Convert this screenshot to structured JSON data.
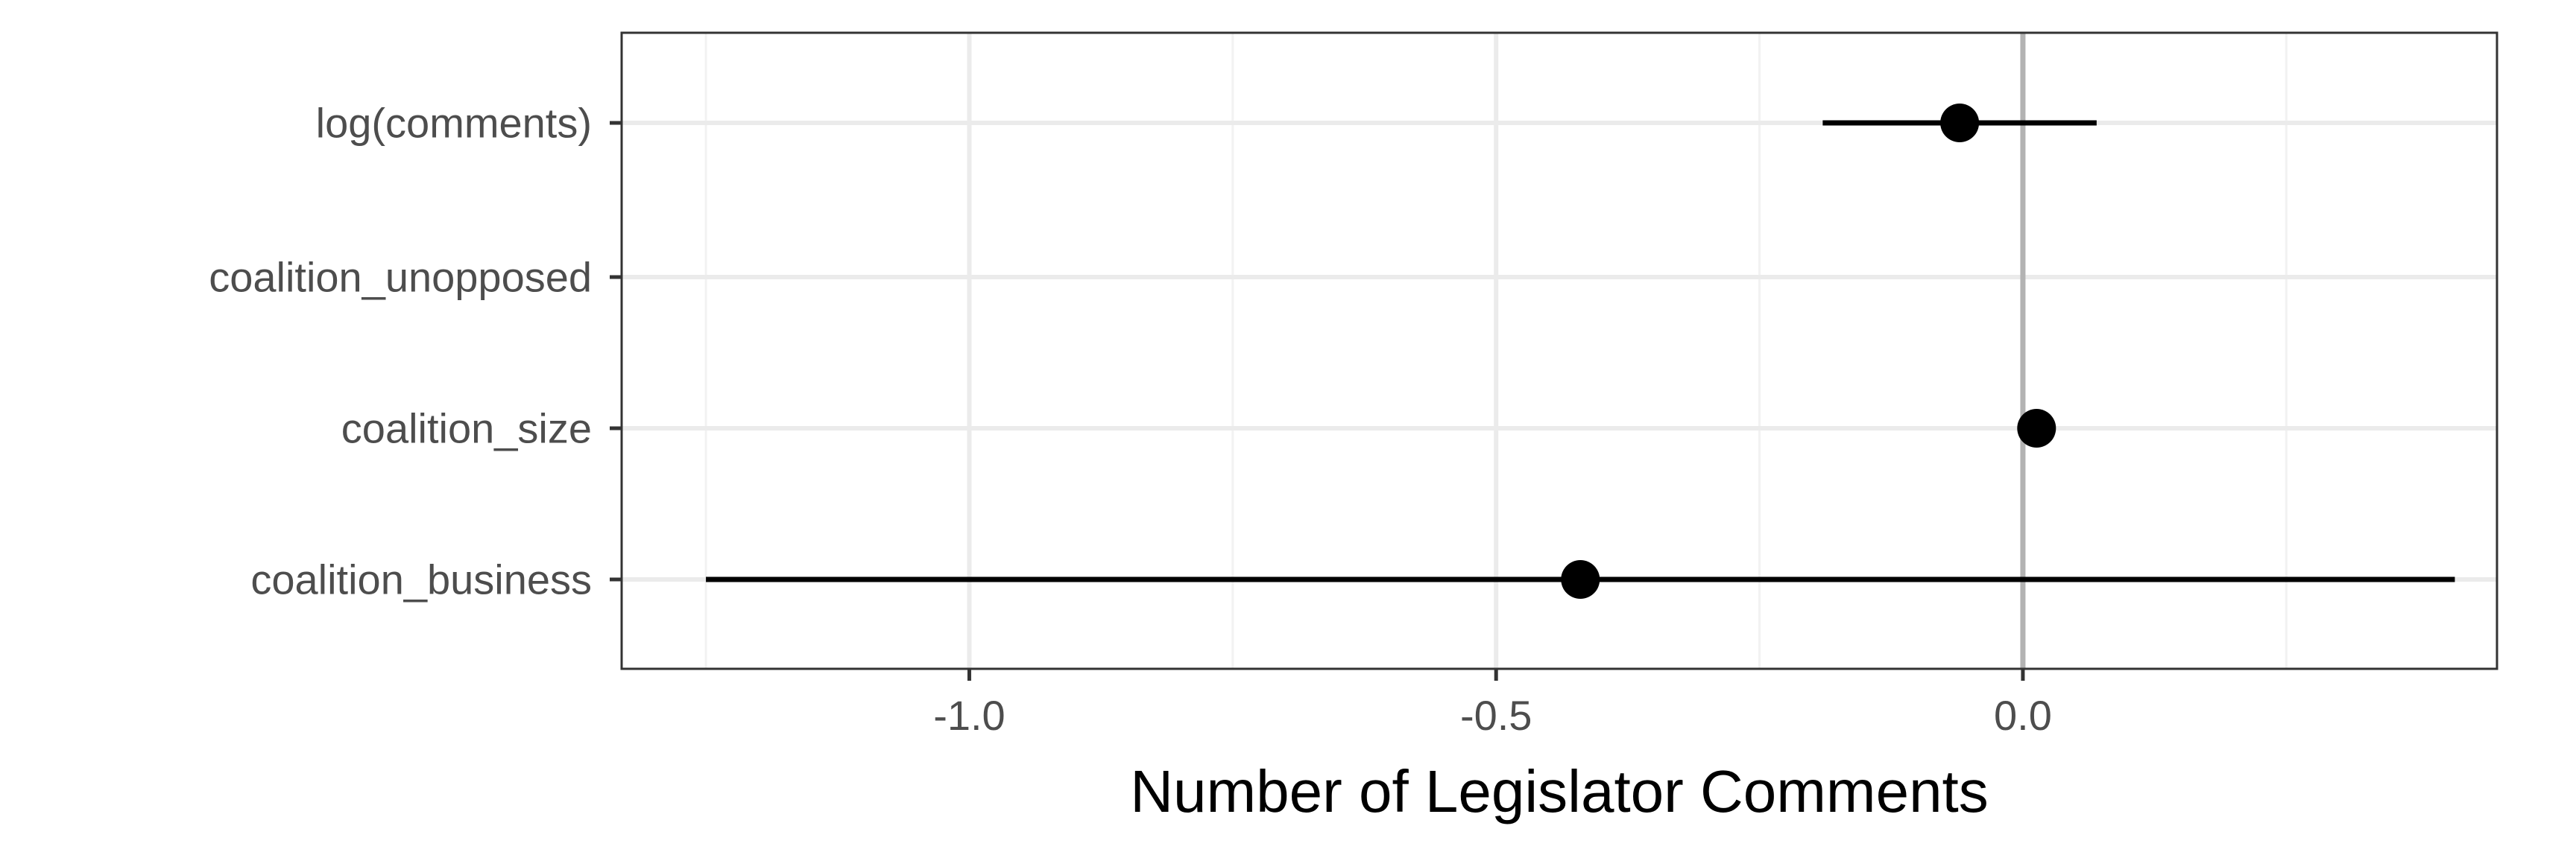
{
  "chart_data": {
    "type": "scatter",
    "subtype": "coefficient-plot",
    "title": "",
    "xlabel": "Number of Legislator Comments",
    "ylabel": "",
    "xlim": [
      -1.33,
      0.45
    ],
    "x_ticks": [
      {
        "value": -1.0,
        "label": "-1.0"
      },
      {
        "value": -0.5,
        "label": "-0.5"
      },
      {
        "value": 0.0,
        "label": "0.0"
      }
    ],
    "x_minor_ticks": [
      -1.25,
      -0.75,
      -0.25,
      0.25
    ],
    "reference_line": 0.0,
    "grid": true,
    "legend": "none",
    "categories": [
      "log(comments)",
      "coalition_unopposed",
      "coalition_size",
      "coalition_business"
    ],
    "series": [
      {
        "points": [
          {
            "category": "log(comments)",
            "estimate": -0.06,
            "ci_low": -0.19,
            "ci_high": 0.07
          },
          {
            "category": "coalition_unopposed",
            "estimate": null,
            "ci_low": null,
            "ci_high": null
          },
          {
            "category": "coalition_size",
            "estimate": 0.013,
            "ci_low": 0.013,
            "ci_high": 0.013
          },
          {
            "category": "coalition_business",
            "estimate": -0.42,
            "ci_low": -1.25,
            "ci_high": 0.41
          }
        ]
      }
    ],
    "colors": {
      "point": "#000000",
      "interval": "#000000",
      "panel_border": "#333333",
      "grid_major": "#ebebeb",
      "grid_minor": "#f2f2f2",
      "reference_line": "#b3b3b3",
      "tick_label": "#4d4d4d",
      "axis_title": "#000000"
    }
  }
}
